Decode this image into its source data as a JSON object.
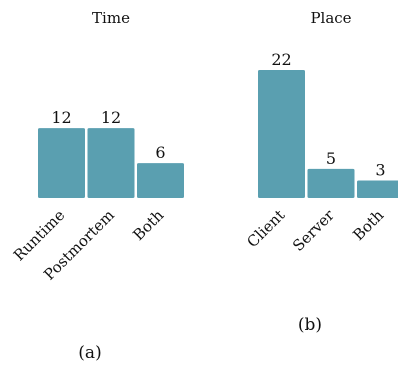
{
  "bar_color": "#5a9fb0",
  "chart_data": [
    {
      "type": "bar",
      "title": "Time",
      "caption": "(a)",
      "categories": [
        "Runtime",
        "Postmortem",
        "Both"
      ],
      "values": [
        12,
        12,
        6
      ],
      "xlabel": "",
      "ylabel": "",
      "ylim": [
        0,
        22
      ],
      "grid": false
    },
    {
      "type": "bar",
      "title": "Place",
      "caption": "(b)",
      "categories": [
        "Client",
        "Server",
        "Both"
      ],
      "values": [
        22,
        5,
        3
      ],
      "xlabel": "",
      "ylabel": "",
      "ylim": [
        0,
        22
      ],
      "grid": false
    }
  ]
}
